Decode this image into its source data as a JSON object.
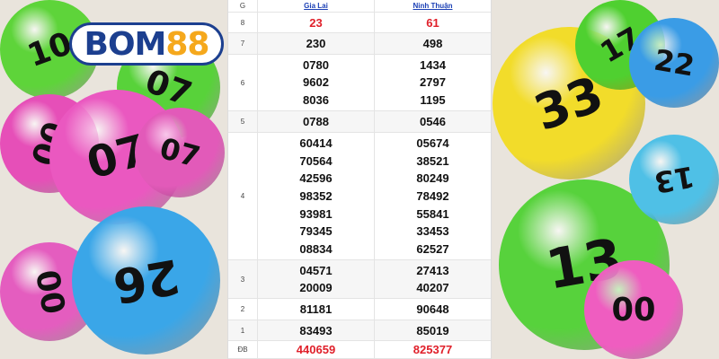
{
  "logo": {
    "text_main": "BOM",
    "text_accent": "88"
  },
  "table": {
    "header": {
      "label": "G",
      "provinces": [
        "Gia Lai",
        "Ninh Thuận"
      ]
    },
    "rows": [
      {
        "prize": "8",
        "gia_lai": [
          "23"
        ],
        "ninh_thuan": [
          "61"
        ],
        "highlight": true
      },
      {
        "prize": "7",
        "gia_lai": [
          "230"
        ],
        "ninh_thuan": [
          "498"
        ]
      },
      {
        "prize": "6",
        "gia_lai": [
          "0780",
          "9602",
          "8036"
        ],
        "ninh_thuan": [
          "1434",
          "2797",
          "1195"
        ]
      },
      {
        "prize": "5",
        "gia_lai": [
          "0788"
        ],
        "ninh_thuan": [
          "0546"
        ]
      },
      {
        "prize": "4",
        "gia_lai": [
          "60414",
          "70564",
          "42596",
          "98352",
          "93981",
          "79345",
          "08834"
        ],
        "ninh_thuan": [
          "05674",
          "38521",
          "80249",
          "78492",
          "55841",
          "33453",
          "62527"
        ]
      },
      {
        "prize": "3",
        "gia_lai": [
          "04571",
          "20009"
        ],
        "ninh_thuan": [
          "27413",
          "40207"
        ]
      },
      {
        "prize": "2",
        "gia_lai": [
          "81181"
        ],
        "ninh_thuan": [
          "90648"
        ]
      },
      {
        "prize": "1",
        "gia_lai": [
          "83493"
        ],
        "ninh_thuan": [
          "85019"
        ]
      },
      {
        "prize": "ĐB",
        "gia_lai": [
          "440659"
        ],
        "ninh_thuan": [
          "825377"
        ],
        "highlight": true
      }
    ]
  },
  "balls": [
    "10",
    "07",
    "07",
    "26",
    "00",
    "33",
    "33",
    "22",
    "13",
    "13",
    "17"
  ],
  "colors": {
    "highlight": "#e0202a",
    "link": "#1a3fb5",
    "logo_blue": "#1c3f8f",
    "logo_yellow": "#f5a81c"
  }
}
